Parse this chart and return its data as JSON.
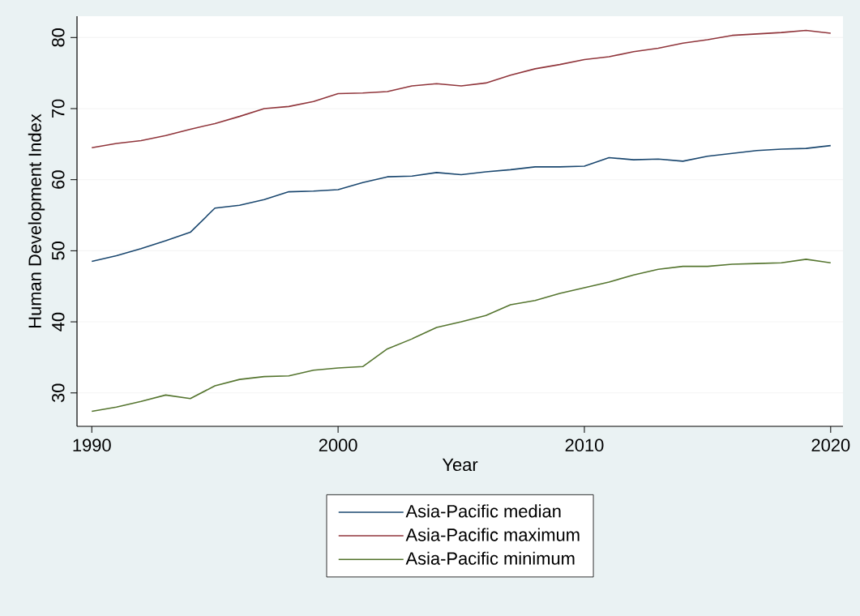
{
  "chart_data": {
    "type": "line",
    "xlabel": "Year",
    "ylabel": "Human Development Index",
    "x": [
      1990,
      1991,
      1992,
      1993,
      1994,
      1995,
      1996,
      1997,
      1998,
      1999,
      2000,
      2001,
      2002,
      2003,
      2004,
      2005,
      2006,
      2007,
      2008,
      2009,
      2010,
      2011,
      2012,
      2013,
      2014,
      2015,
      2016,
      2017,
      2018,
      2019,
      2020
    ],
    "series": [
      {
        "name": "Asia-Pacific median",
        "color": "#1a476f",
        "values": [
          48.5,
          49.3,
          50.3,
          51.4,
          52.6,
          56.0,
          56.4,
          57.2,
          58.3,
          58.4,
          58.6,
          59.6,
          60.4,
          60.5,
          61.0,
          60.7,
          61.1,
          61.4,
          61.8,
          61.8,
          61.9,
          63.1,
          62.8,
          62.9,
          62.6,
          63.3,
          63.7,
          64.1,
          64.3,
          64.4,
          64.8
        ]
      },
      {
        "name": "Asia-Pacific maximum",
        "color": "#90353b",
        "values": [
          64.5,
          65.1,
          65.5,
          66.2,
          67.1,
          67.9,
          68.9,
          70.0,
          70.3,
          71.0,
          72.1,
          72.2,
          72.4,
          73.2,
          73.5,
          73.2,
          73.6,
          74.7,
          75.6,
          76.2,
          76.9,
          77.3,
          78.0,
          78.5,
          79.2,
          79.7,
          80.3,
          80.5,
          80.7,
          81.0,
          80.6
        ]
      },
      {
        "name": "Asia-Pacific minimum",
        "color": "#55752f",
        "values": [
          27.4,
          28.0,
          28.8,
          29.7,
          29.2,
          31.0,
          31.9,
          32.3,
          32.4,
          33.2,
          33.5,
          33.7,
          36.2,
          37.6,
          39.2,
          40.0,
          40.9,
          42.4,
          43.0,
          44.0,
          44.8,
          45.6,
          46.6,
          47.4,
          47.8,
          47.8,
          48.1,
          48.2,
          48.3,
          48.8,
          48.3
        ]
      }
    ],
    "xlim": [
      1989.4,
      2020.5
    ],
    "ylim": [
      25.3,
      83
    ],
    "xticks": [
      1990,
      2000,
      2010,
      2020
    ],
    "yticks": [
      30,
      40,
      50,
      60,
      70,
      80
    ],
    "grid": "y",
    "legend": "bottom"
  }
}
